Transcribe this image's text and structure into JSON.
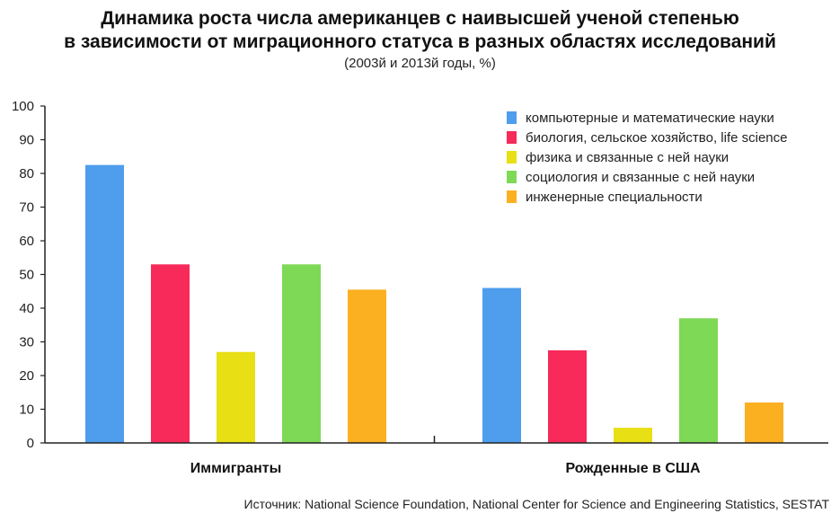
{
  "title_line1": "Динамика роста числа американцев с наивысшей ученой степенью",
  "title_line2": "в зависимости от миграционного статуса в разных областях исследований",
  "subtitle": "(2003й и 2013й годы, %)",
  "source": "Источник: National Science Foundation, National Center for Science and Engineering Statistics, SESTAT",
  "chart_data": {
    "type": "bar",
    "title": "Динамика роста числа американцев с наивысшей ученой степенью в зависимости от миграционного статуса в разных областях исследований",
    "subtitle": "(2003й и 2013й годы, %)",
    "categories": [
      "Иммигранты",
      "Рожденные в США"
    ],
    "series": [
      {
        "name": "компьютерные и математические науки",
        "color": "#4f9ded",
        "values": [
          82.5,
          46
        ]
      },
      {
        "name": "биология, сельское хозяйство, life science",
        "color": "#f72a5a",
        "values": [
          53,
          27.5
        ]
      },
      {
        "name": "физика и связанные с ней науки",
        "color": "#e8df14",
        "values": [
          27,
          4.5
        ]
      },
      {
        "name": "социология и связанные  с ней науки",
        "color": "#7ed957",
        "values": [
          53,
          37
        ]
      },
      {
        "name": "инженерные специальности",
        "color": "#fbb021",
        "values": [
          45.5,
          12
        ]
      }
    ],
    "yticks": [
      0,
      10,
      20,
      30,
      40,
      50,
      60,
      70,
      80,
      90,
      100
    ],
    "ylim": [
      0,
      100
    ],
    "xlabel": "",
    "ylabel": "",
    "grid": false,
    "legend": "top-right"
  }
}
